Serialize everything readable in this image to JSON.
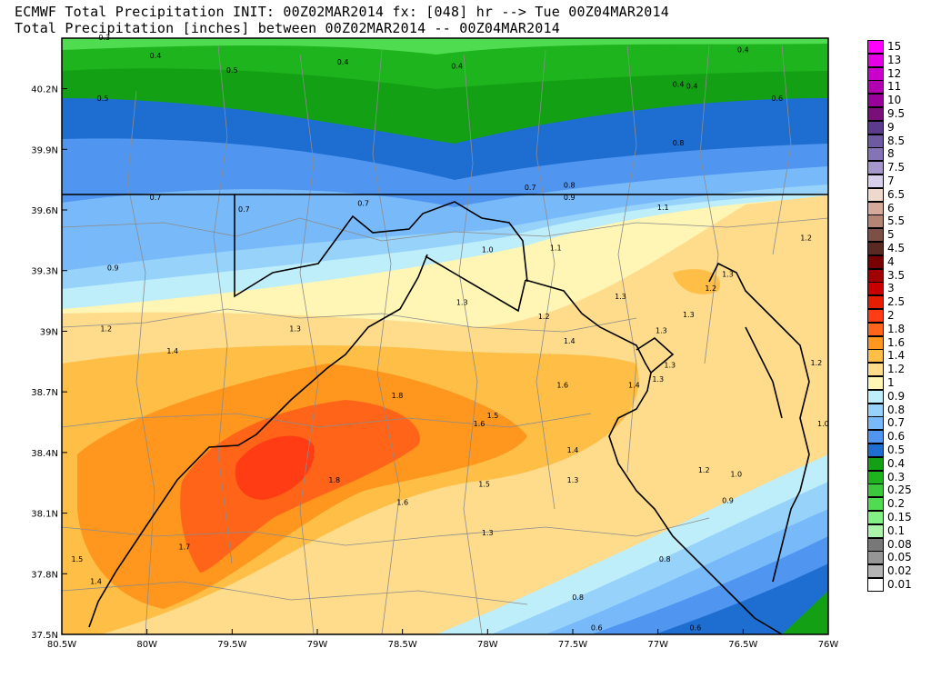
{
  "title": {
    "line1": "ECMWF Total Precipitation INIT: 00Z02MAR2014 fx: [048] hr --> Tue 00Z04MAR2014",
    "line2": "Total Precipitation [inches] between 00Z02MAR2014 -- 00Z04MAR2014"
  },
  "axes": {
    "x_ticks": [
      "80.5W",
      "80W",
      "79.5W",
      "79W",
      "78.5W",
      "78W",
      "77.5W",
      "77W",
      "76.5W",
      "76W"
    ],
    "y_ticks": [
      "40.2N",
      "39.9N",
      "39.6N",
      "39.3N",
      "39N",
      "38.7N",
      "38.4N",
      "38.1N",
      "37.8N",
      "37.5N"
    ],
    "lon_range": [
      -80.5,
      -76.0
    ],
    "lat_range": [
      37.5,
      40.45
    ]
  },
  "legend": [
    {
      "label": "15",
      "color": "#ff00ff"
    },
    {
      "label": "13",
      "color": "#e600e6"
    },
    {
      "label": "12",
      "color": "#cc00cc"
    },
    {
      "label": "11",
      "color": "#b000b0"
    },
    {
      "label": "10",
      "color": "#990099"
    },
    {
      "label": "9.5",
      "color": "#7a0f7a"
    },
    {
      "label": "9",
      "color": "#5b3c8c"
    },
    {
      "label": "8.5",
      "color": "#6e5aa0"
    },
    {
      "label": "8",
      "color": "#8473b5"
    },
    {
      "label": "7.5",
      "color": "#a596cc"
    },
    {
      "label": "7",
      "color": "#d8d0ea"
    },
    {
      "label": "6.5",
      "color": "#efd8cc"
    },
    {
      "label": "6",
      "color": "#d6aa9a"
    },
    {
      "label": "5.5",
      "color": "#b48474"
    },
    {
      "label": "5",
      "color": "#7d5046"
    },
    {
      "label": "4.5",
      "color": "#5a2a22"
    },
    {
      "label": "4",
      "color": "#780000"
    },
    {
      "label": "3.5",
      "color": "#a00000"
    },
    {
      "label": "3",
      "color": "#c80000"
    },
    {
      "label": "2.5",
      "color": "#e61e00"
    },
    {
      "label": "2",
      "color": "#ff3c14"
    },
    {
      "label": "1.8",
      "color": "#ff6419"
    },
    {
      "label": "1.6",
      "color": "#ff961e"
    },
    {
      "label": "1.4",
      "color": "#ffbe46"
    },
    {
      "label": "1.2",
      "color": "#ffdc8c"
    },
    {
      "label": "1",
      "color": "#fff5b4"
    },
    {
      "label": "0.9",
      "color": "#beeefa"
    },
    {
      "label": "0.8",
      "color": "#96d2fa"
    },
    {
      "label": "0.7",
      "color": "#78b9fa"
    },
    {
      "label": "0.6",
      "color": "#5096f0"
    },
    {
      "label": "0.5",
      "color": "#1e6ed2"
    },
    {
      "label": "0.4",
      "color": "#14a014"
    },
    {
      "label": "0.3",
      "color": "#1eb41e"
    },
    {
      "label": "0.25",
      "color": "#3cc83c"
    },
    {
      "label": "0.2",
      "color": "#50dc50"
    },
    {
      "label": "0.15",
      "color": "#82f082"
    },
    {
      "label": "0.1",
      "color": "#aaf5aa"
    },
    {
      "label": "0.08",
      "color": "#787878"
    },
    {
      "label": "0.05",
      "color": "#969696"
    },
    {
      "label": "0.02",
      "color": "#b4b4b4"
    },
    {
      "label": "0.01",
      "color": "#ffffff"
    }
  ],
  "contour_labels": [
    {
      "t": "0.3",
      "lon": -80.25,
      "lat": 40.44
    },
    {
      "t": "0.4",
      "lon": -79.95,
      "lat": 40.35
    },
    {
      "t": "0.4",
      "lon": -78.85,
      "lat": 40.32
    },
    {
      "t": "0.4",
      "lon": -78.18,
      "lat": 40.3
    },
    {
      "t": "0.4",
      "lon": -76.5,
      "lat": 40.38
    },
    {
      "t": "0.5",
      "lon": -79.5,
      "lat": 40.28
    },
    {
      "t": "0.5",
      "lon": -80.26,
      "lat": 40.14
    },
    {
      "t": "0.4",
      "lon": -76.88,
      "lat": 40.21
    },
    {
      "t": "0.4",
      "lon": -76.8,
      "lat": 40.2
    },
    {
      "t": "0.6",
      "lon": -76.3,
      "lat": 40.14
    },
    {
      "t": "0.8",
      "lon": -76.88,
      "lat": 39.92
    },
    {
      "t": "0.7",
      "lon": -79.95,
      "lat": 39.65
    },
    {
      "t": "0.7",
      "lon": -79.43,
      "lat": 39.59
    },
    {
      "t": "0.7",
      "lon": -78.73,
      "lat": 39.62
    },
    {
      "t": "0.7",
      "lon": -77.75,
      "lat": 39.7
    },
    {
      "t": "0.8",
      "lon": -77.52,
      "lat": 39.71
    },
    {
      "t": "0.9",
      "lon": -77.52,
      "lat": 39.65
    },
    {
      "t": "1.1",
      "lon": -76.97,
      "lat": 39.6
    },
    {
      "t": "1.0",
      "lon": -78.0,
      "lat": 39.39
    },
    {
      "t": "1.1",
      "lon": -77.6,
      "lat": 39.4
    },
    {
      "t": "1.2",
      "lon": -76.13,
      "lat": 39.45
    },
    {
      "t": "0.9",
      "lon": -80.2,
      "lat": 39.3
    },
    {
      "t": "1.3",
      "lon": -76.59,
      "lat": 39.27
    },
    {
      "t": "1.2",
      "lon": -76.69,
      "lat": 39.2
    },
    {
      "t": "1.3",
      "lon": -77.22,
      "lat": 39.16
    },
    {
      "t": "1.3",
      "lon": -78.15,
      "lat": 39.13
    },
    {
      "t": "1.3",
      "lon": -76.82,
      "lat": 39.07
    },
    {
      "t": "1.2",
      "lon": -77.67,
      "lat": 39.06
    },
    {
      "t": "1.2",
      "lon": -80.24,
      "lat": 39.0
    },
    {
      "t": "1.3",
      "lon": -79.13,
      "lat": 39.0
    },
    {
      "t": "1.3",
      "lon": -76.98,
      "lat": 38.99
    },
    {
      "t": "1.4",
      "lon": -77.52,
      "lat": 38.94
    },
    {
      "t": "1.4",
      "lon": -79.85,
      "lat": 38.89
    },
    {
      "t": "1.3",
      "lon": -76.93,
      "lat": 38.82
    },
    {
      "t": "1.2",
      "lon": -76.07,
      "lat": 38.83
    },
    {
      "t": "1.3",
      "lon": -77.0,
      "lat": 38.75
    },
    {
      "t": "1.6",
      "lon": -77.56,
      "lat": 38.72
    },
    {
      "t": "1.4",
      "lon": -77.14,
      "lat": 38.72
    },
    {
      "t": "1.8",
      "lon": -78.53,
      "lat": 38.67
    },
    {
      "t": "1.5",
      "lon": -77.97,
      "lat": 38.57
    },
    {
      "t": "1.6",
      "lon": -78.05,
      "lat": 38.53
    },
    {
      "t": "1.0",
      "lon": -76.03,
      "lat": 38.53
    },
    {
      "t": "1.4",
      "lon": -77.5,
      "lat": 38.4
    },
    {
      "t": "1.2",
      "lon": -76.73,
      "lat": 38.3
    },
    {
      "t": "1.0",
      "lon": -76.54,
      "lat": 38.28
    },
    {
      "t": "1.8",
      "lon": -78.9,
      "lat": 38.25
    },
    {
      "t": "1.3",
      "lon": -77.5,
      "lat": 38.25
    },
    {
      "t": "1.5",
      "lon": -78.02,
      "lat": 38.23
    },
    {
      "t": "0.9",
      "lon": -76.59,
      "lat": 38.15
    },
    {
      "t": "1.6",
      "lon": -78.5,
      "lat": 38.14
    },
    {
      "t": "1.3",
      "lon": -78.0,
      "lat": 37.99
    },
    {
      "t": "1.7",
      "lon": -79.78,
      "lat": 37.92
    },
    {
      "t": "1.5",
      "lon": -80.41,
      "lat": 37.86
    },
    {
      "t": "0.8",
      "lon": -76.96,
      "lat": 37.86
    },
    {
      "t": "1.4",
      "lon": -80.3,
      "lat": 37.75
    },
    {
      "t": "0.8",
      "lon": -77.47,
      "lat": 37.67
    },
    {
      "t": "0.6",
      "lon": -77.36,
      "lat": 37.52
    },
    {
      "t": "0.6",
      "lon": -76.78,
      "lat": 37.52
    }
  ]
}
